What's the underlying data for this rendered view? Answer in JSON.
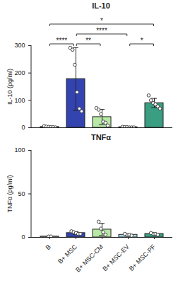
{
  "chart_data": [
    {
      "type": "bar",
      "title": "IL-10",
      "y_label": "IL-10 (pg/ml)",
      "categories": [
        "B",
        "B+ MSC",
        "B+ MSC-CM",
        "B+ MSC-EV",
        "B+ MSC-PF"
      ],
      "values": [
        3,
        178,
        39,
        2,
        90
      ],
      "errors": [
        2,
        115,
        28,
        1,
        17
      ],
      "points": [
        [
          6,
          4,
          3,
          2,
          2,
          1
        ],
        [
          292,
          285,
          230,
          130,
          70,
          60
        ],
        [
          72,
          66,
          50,
          22,
          18,
          8
        ],
        [
          3,
          2,
          2,
          1,
          1,
          1
        ],
        [
          118,
          100,
          90,
          85,
          78,
          70
        ]
      ],
      "colors": [
        "#ffffff",
        "#3344b0",
        "#b7e8a6",
        "#a9d9e6",
        "#3a9e82"
      ],
      "ylim": [
        0,
        300
      ],
      "yticks": [
        0,
        100,
        200,
        300
      ],
      "tick_labels": "y",
      "annotations": [
        {
          "from": "B",
          "to": "B+ MSC-PF",
          "text": "*"
        },
        {
          "from": "B",
          "to": "B+ MSC",
          "text": "****"
        },
        {
          "from": "B+ MSC",
          "to": "B+ MSC-EV",
          "text": "****"
        },
        {
          "from": "B+ MSC",
          "to": "B+ MSC-CM",
          "text": "**"
        },
        {
          "from": "B+ MSC-EV",
          "to": "B+ MSC-PF",
          "text": "*"
        }
      ]
    },
    {
      "type": "bar",
      "title": "TNFα",
      "y_label": "TNFα (pg/ml)",
      "categories": [
        "B",
        "B+ MSC",
        "B+ MSC-CM",
        "B+ MSC-EV",
        "B+ MSC-PF"
      ],
      "values": [
        1,
        5,
        9,
        3,
        4
      ],
      "errors": [
        0.5,
        1.5,
        7,
        1,
        0.8
      ],
      "points": [
        [
          1,
          1
        ],
        [
          7,
          6,
          5,
          4,
          4
        ],
        [
          18,
          10,
          6,
          3
        ],
        [
          4,
          3,
          3,
          2
        ],
        [
          5,
          4,
          4,
          3
        ]
      ],
      "colors": [
        "#ffffff",
        "#3344b0",
        "#b7e8a6",
        "#a9d9e6",
        "#3a9e82"
      ],
      "ylim": [
        0,
        100
      ],
      "yticks": [
        0,
        50,
        100
      ]
    }
  ]
}
